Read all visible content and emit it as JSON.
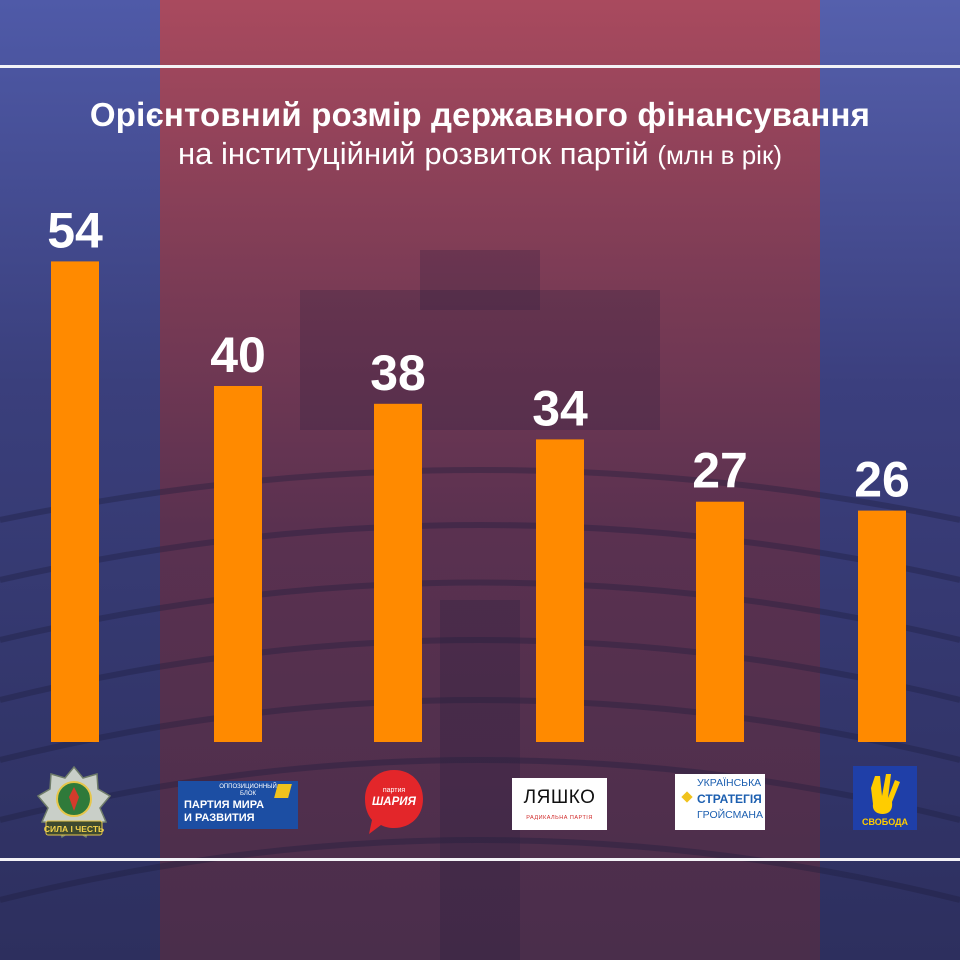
{
  "header": {
    "title": "Орієнтовний розмір державного фінансування",
    "subtitle": "на інституційний розвиток партій",
    "unit": "(млн в рік)"
  },
  "chart_data": {
    "type": "bar",
    "categories": [
      "Сила і Честь",
      "Оппозиционный блок — Партия мира и развития",
      "Партия Шария",
      "Ляшко — Радикальна партія",
      "Українська стратегія Гройсмана",
      "Свобода"
    ],
    "values": [
      54,
      40,
      38,
      34,
      27,
      26
    ],
    "ylim": [
      0,
      54
    ],
    "bar_color": "#ff8a00",
    "axis": "none",
    "grid": false,
    "legend": "none"
  },
  "logos": {
    "sila_i_chest": "СИЛА І ЧЕСТЬ",
    "opoblock_top": "ОППОЗИЦИОННЫЙ БЛОК",
    "opoblock_line1": "ПАРТИЯ МИРА",
    "opoblock_line2": "И РАЗВИТИЯ",
    "shariy_small": "партия",
    "shariy_big": "ШАРИЯ",
    "lyashko_name": "ЛЯШКО",
    "lyashko_sub": "РАДИКАЛЬНА ПАРТІЯ",
    "groysman_line1": "УКРАЇНСЬКА",
    "groysman_line2": "СТРАТЕГІЯ",
    "groysman_line3": "ГРОЙСМАНА",
    "svoboda": "СВОБОДА"
  },
  "colors": {
    "background_blue": "#2e2d5e",
    "background_red": "#a94a5e",
    "text": "#ffffff",
    "opoblock_blue": "#1c4ea3",
    "shariy_red": "#e3262a",
    "svoboda_blue": "#1f3fa8",
    "svoboda_yellow": "#ffcc00"
  }
}
